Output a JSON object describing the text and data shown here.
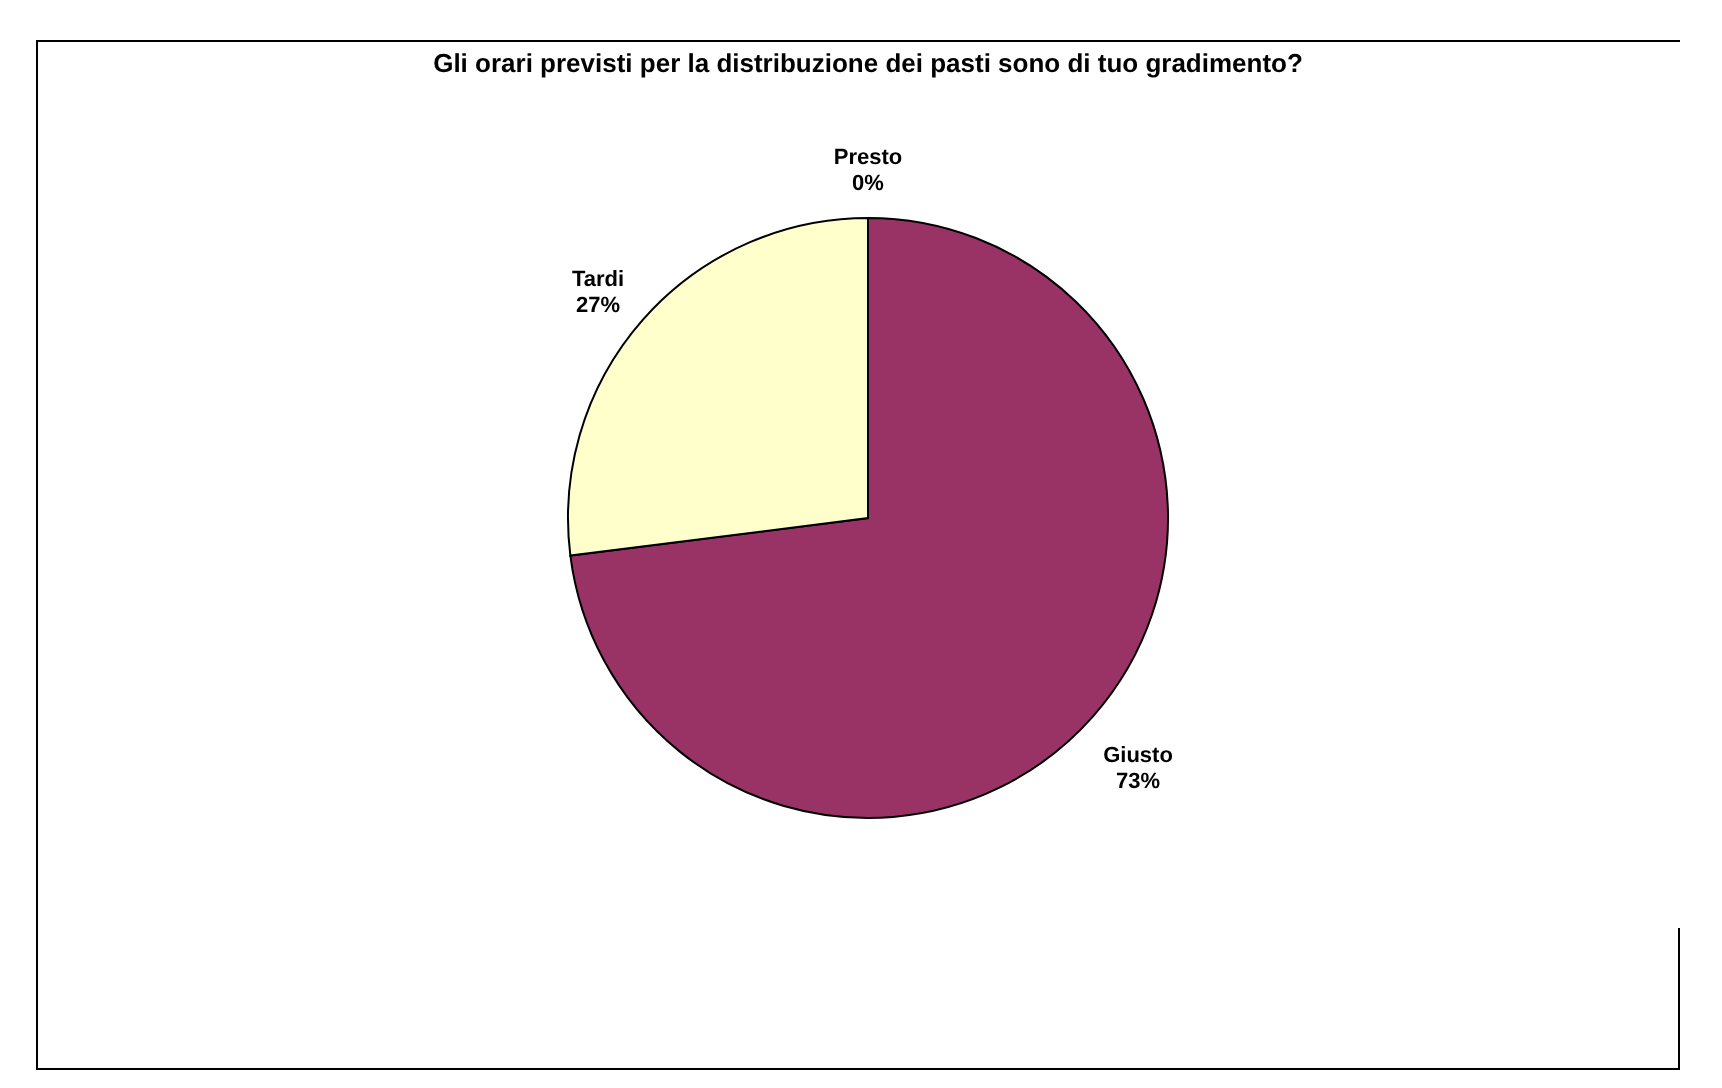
{
  "chart_data": {
    "type": "pie",
    "title": "Gli orari previsti per la distribuzione dei pasti sono di tuo gradimento?",
    "categories": [
      "Presto",
      "Giusto",
      "Tardi"
    ],
    "values": [
      0,
      73,
      27
    ],
    "colors": [
      "#9999ff",
      "#993366",
      "#ffffcc"
    ],
    "value_labels": [
      "0%",
      "73%",
      "27%"
    ],
    "legend": false
  }
}
